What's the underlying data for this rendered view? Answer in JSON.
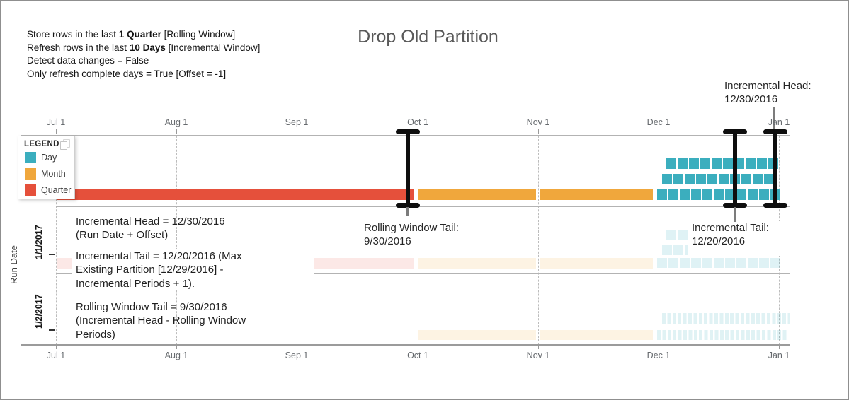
{
  "title": "Drop Old Partition",
  "config": {
    "lines": [
      {
        "pre": "Store rows in the last ",
        "bold": "1 Quarter",
        "post": " [Rolling Window]"
      },
      {
        "pre": "Refresh rows in the last ",
        "bold": "10 Days",
        "post": " [Incremental Window]"
      },
      {
        "pre": "Detect data changes = False",
        "bold": "",
        "post": ""
      },
      {
        "pre": "Only refresh complete days = True [Offset = -1]",
        "bold": "",
        "post": ""
      }
    ]
  },
  "palette": {
    "day": "#3BAEBE",
    "month": "#F0A73C",
    "quarter": "#E5503B",
    "day_faded": "rgba(59,174,190,0.16)",
    "month_faded": "rgba(240,167,60,0.14)",
    "quarter_faded": "rgba(229,80,59,0.13)",
    "marker": "#0e0e0e",
    "leader_gray": "#7c7c7c",
    "title_gray": "#595959"
  },
  "legend": {
    "title": "LEGEND",
    "items": [
      {
        "label": "Day",
        "color": "#3BAEBE"
      },
      {
        "label": "Month",
        "color": "#F0A73C"
      },
      {
        "label": "Quarter",
        "color": "#E5503B"
      }
    ]
  },
  "axis": {
    "title": "Run Date",
    "month_labels": [
      "Jul 1",
      "Aug 1",
      "Sep 1",
      "Oct 1",
      "Nov 1",
      "Dec 1",
      "Jan 1"
    ],
    "run_date_labels": [
      "1/1/2017",
      "1/2/2017"
    ]
  },
  "callouts": {
    "incremental_head": {
      "line1": "Incremental Head:",
      "line2": "12/30/2016"
    },
    "rolling_window_tail": {
      "line1": "Rolling Window Tail:",
      "line2": "9/30/2016"
    },
    "incremental_tail": {
      "line1": "Incremental Tail:",
      "line2": "12/20/2016"
    }
  },
  "annotations": {
    "head": [
      "Incremental Head = 12/30/2016",
      "(Run Date + Offset)"
    ],
    "tail": [
      "Incremental Tail = 12/20/2016 (Max",
      "Existing Partition [12/29/2016] -",
      "Incremental Periods + 1)."
    ],
    "rolling": [
      "Rolling Window Tail = 9/30/2016",
      "(Incremental Head - Rolling Window",
      "Periods)"
    ]
  },
  "chart_data": {
    "type": "bar",
    "subtype": "partition-timeline",
    "title": "Drop Old Partition",
    "x_axis": {
      "tick_labels": [
        "Jul 1",
        "Aug 1",
        "Sep 1",
        "Oct 1",
        "Nov 1",
        "Dec 1",
        "Jan 1"
      ],
      "range": [
        "7/1/2016",
        "1/1/2017"
      ],
      "gridlines": "dashed-monthly"
    },
    "y_axis": {
      "label": "Run Date",
      "rows": [
        "current",
        "1/1/2017",
        "1/2/2017"
      ]
    },
    "legend": {
      "position": "top-left",
      "entries": [
        "Day",
        "Month",
        "Quarter"
      ]
    },
    "rows": [
      {
        "run_date": "current",
        "faded": false,
        "partitions": [
          {
            "grain": "Quarter",
            "start": "7/1/2016",
            "end": "9/30/2016"
          },
          {
            "grain": "Month",
            "start": "10/1/2016",
            "end": "10/31/2016"
          },
          {
            "grain": "Month",
            "start": "11/1/2016",
            "end": "11/30/2016"
          },
          {
            "grain": "Day",
            "start": "12/1/2016",
            "end": "12/31/2016",
            "day_count": 31
          }
        ]
      },
      {
        "run_date": "1/1/2017",
        "faded": true,
        "partitions": [
          {
            "grain": "Quarter",
            "start": "7/1/2016",
            "end": "9/30/2016"
          },
          {
            "grain": "Month",
            "start": "10/1/2016",
            "end": "10/31/2016"
          },
          {
            "grain": "Month",
            "start": "11/1/2016",
            "end": "11/30/2016"
          },
          {
            "grain": "Day",
            "start": "12/1/2016",
            "end": "12/31/2016",
            "day_count": 31
          }
        ]
      },
      {
        "run_date": "1/2/2017",
        "faded": true,
        "partitions": [
          {
            "grain": "Month",
            "start": "10/1/2016",
            "end": "10/31/2016"
          },
          {
            "grain": "Month",
            "start": "11/1/2016",
            "end": "11/30/2016"
          },
          {
            "grain": "Day",
            "start": "12/1/2016",
            "end": "1/2/2017"
          }
        ]
      }
    ],
    "markers": [
      {
        "name": "Rolling Window Tail",
        "date": "9/30/2016"
      },
      {
        "name": "Incremental Tail",
        "date": "12/20/2016"
      },
      {
        "name": "Incremental Head",
        "date": "12/30/2016"
      }
    ]
  }
}
